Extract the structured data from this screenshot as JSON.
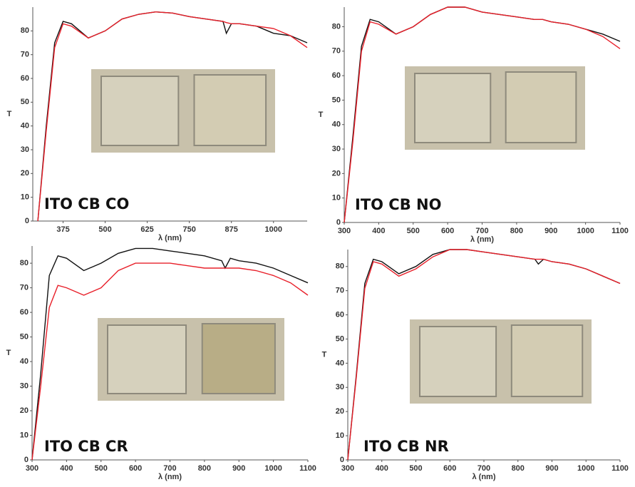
{
  "chart_data": [
    {
      "type": "line",
      "annotation": "ITO CB CO",
      "xlabel": "λ (nm)",
      "ylabel": "T",
      "x": [
        300,
        325,
        350,
        375,
        400,
        450,
        500,
        550,
        600,
        650,
        700,
        750,
        800,
        850,
        860,
        875,
        900,
        950,
        1000,
        1050,
        1100
      ],
      "series": [
        {
          "name": "black",
          "color": "#111111",
          "values": [
            0,
            40,
            75,
            84,
            83,
            77,
            80,
            85,
            87,
            88,
            87.5,
            86,
            85,
            84,
            79,
            83,
            83,
            82,
            79,
            78,
            75
          ]
        },
        {
          "name": "red",
          "color": "#e8202a",
          "values": [
            0,
            38,
            73,
            83,
            82,
            77,
            80,
            85,
            87,
            88,
            87.5,
            86,
            85,
            84,
            83.5,
            83,
            83,
            82,
            81,
            78,
            73
          ]
        }
      ],
      "xlim": [
        285,
        1100
      ],
      "xticks": [
        375,
        500,
        625,
        750,
        875,
        1000
      ],
      "ylim": [
        0,
        90
      ],
      "yticks": [
        0,
        10,
        20,
        30,
        40,
        50,
        60,
        70,
        80
      ]
    },
    {
      "type": "line",
      "annotation": "ITO CB NO",
      "xlabel": "λ (nm)",
      "ylabel": "T",
      "x": [
        300,
        325,
        350,
        375,
        400,
        450,
        500,
        550,
        600,
        650,
        700,
        750,
        800,
        850,
        860,
        875,
        900,
        950,
        1000,
        1050,
        1100
      ],
      "series": [
        {
          "name": "black",
          "color": "#111111",
          "values": [
            0,
            35,
            72,
            83,
            82,
            77,
            80,
            85,
            88,
            88,
            86,
            85,
            84,
            83,
            83,
            83,
            82,
            81,
            79,
            77,
            74
          ]
        },
        {
          "name": "red",
          "color": "#e8202a",
          "values": [
            0,
            33,
            70,
            82,
            81,
            77,
            80,
            85,
            88,
            88,
            86,
            85,
            84,
            83,
            83,
            83,
            82,
            81,
            79,
            76,
            71
          ]
        }
      ],
      "xlim": [
        300,
        1100
      ],
      "xticks": [
        300,
        400,
        500,
        600,
        700,
        800,
        900,
        1000,
        1100
      ],
      "ylim": [
        0,
        88
      ],
      "yticks": [
        0,
        10,
        20,
        30,
        40,
        50,
        60,
        70,
        80
      ]
    },
    {
      "type": "line",
      "annotation": "ITO CB CR",
      "xlabel": "λ (nm)",
      "ylabel": "T",
      "x": [
        300,
        325,
        350,
        375,
        400,
        450,
        500,
        550,
        600,
        650,
        700,
        750,
        800,
        850,
        860,
        875,
        900,
        950,
        1000,
        1050,
        1100
      ],
      "series": [
        {
          "name": "black",
          "color": "#111111",
          "values": [
            0,
            35,
            75,
            83,
            82,
            77,
            80,
            84,
            86,
            86,
            85,
            84,
            83,
            81,
            78,
            82,
            81,
            80,
            78,
            75,
            72
          ]
        },
        {
          "name": "red",
          "color": "#e8202a",
          "values": [
            0,
            30,
            62,
            71,
            70,
            67,
            70,
            77,
            80,
            80,
            80,
            79,
            78,
            78,
            78,
            78,
            78,
            77,
            75,
            72,
            67
          ]
        }
      ],
      "xlim": [
        300,
        1100
      ],
      "xticks": [
        300,
        400,
        500,
        600,
        700,
        800,
        900,
        1000,
        1100
      ],
      "ylim": [
        0,
        87
      ],
      "yticks": [
        0,
        10,
        20,
        30,
        40,
        50,
        60,
        70,
        80
      ]
    },
    {
      "type": "line",
      "annotation": "ITO CB NR",
      "xlabel": "λ (nm)",
      "ylabel": "T",
      "x": [
        300,
        325,
        350,
        375,
        400,
        450,
        500,
        550,
        600,
        650,
        700,
        750,
        800,
        850,
        860,
        875,
        900,
        950,
        1000,
        1050,
        1100
      ],
      "series": [
        {
          "name": "black",
          "color": "#111111",
          "values": [
            0,
            35,
            73,
            83,
            82,
            77,
            80,
            85,
            87,
            87,
            86,
            85,
            84,
            83,
            81,
            83,
            82,
            81,
            79,
            76,
            73
          ]
        },
        {
          "name": "red",
          "color": "#e8202a",
          "values": [
            0,
            34,
            71,
            82,
            81,
            76,
            79,
            84,
            87,
            87,
            86,
            85,
            84,
            83,
            83,
            83,
            82,
            81,
            79,
            76,
            73
          ]
        }
      ],
      "xlim": [
        300,
        1100
      ],
      "xticks": [
        300,
        400,
        500,
        600,
        700,
        800,
        900,
        1000,
        1100
      ],
      "ylim": [
        0,
        87
      ],
      "yticks": [
        0,
        10,
        20,
        30,
        40,
        50,
        60,
        70,
        80
      ]
    }
  ]
}
